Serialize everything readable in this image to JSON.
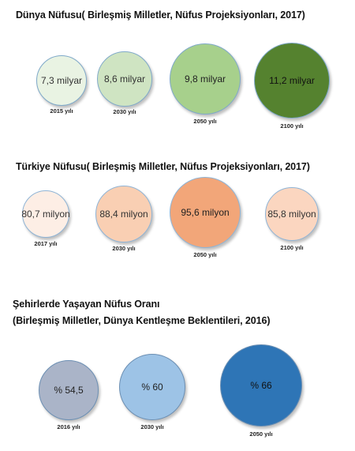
{
  "chart_data": [
    {
      "type": "bubble",
      "title": "Dünya Nüfusu( Birleşmiş Milletler, Nüfus Projeksiyonları, 2017)",
      "categories": [
        "2015 yılı",
        "2030 yılı",
        "2050 yılı",
        "2100 yılı"
      ],
      "labels": [
        "7,3 milyar",
        "8,6 milyar",
        "9,8 milyar",
        "11,2 milyar"
      ],
      "values": [
        7.3,
        8.6,
        9.8,
        11.2
      ],
      "unit": "milyar",
      "colors": [
        "#e9f3e3",
        "#cfe4c2",
        "#a7d08c",
        "#55822f"
      ],
      "text_colors": [
        "#333333",
        "#333333",
        "#222222",
        "#111111"
      ]
    },
    {
      "type": "bubble",
      "title": "Türkiye Nüfusu( Birleşmiş Milletler, Nüfus Projeksiyonları, 2017)",
      "categories": [
        "2017 yılı",
        "2030 yılı",
        "2050 yılı",
        "2100 yılı"
      ],
      "labels": [
        "80,7 milyon",
        "88,4 milyon",
        "95,6 milyon",
        "85,8 milyon"
      ],
      "values": [
        80.7,
        88.4,
        95.6,
        85.8
      ],
      "unit": "milyon",
      "colors": [
        "#fdeee5",
        "#f9cfb3",
        "#f2a679",
        "#fbd6c0"
      ],
      "text_colors": [
        "#333333",
        "#333333",
        "#222222",
        "#333333"
      ]
    },
    {
      "type": "bubble",
      "title": "Şehirlerde Yaşayan Nüfus Oranı",
      "subtitle": "(Birleşmiş Milletler, Dünya Kentleşme Beklentileri, 2016)",
      "categories": [
        "2016 yılı",
        "2030 yılı",
        "2050 yılı"
      ],
      "labels": [
        "% 54,5",
        "% 60",
        "% 66"
      ],
      "values": [
        54.5,
        60,
        66
      ],
      "unit": "%",
      "colors": [
        "#aab4c8",
        "#9dc3e6",
        "#2e75b6"
      ],
      "text_colors": [
        "#222222",
        "#222222",
        "#111111"
      ]
    }
  ]
}
